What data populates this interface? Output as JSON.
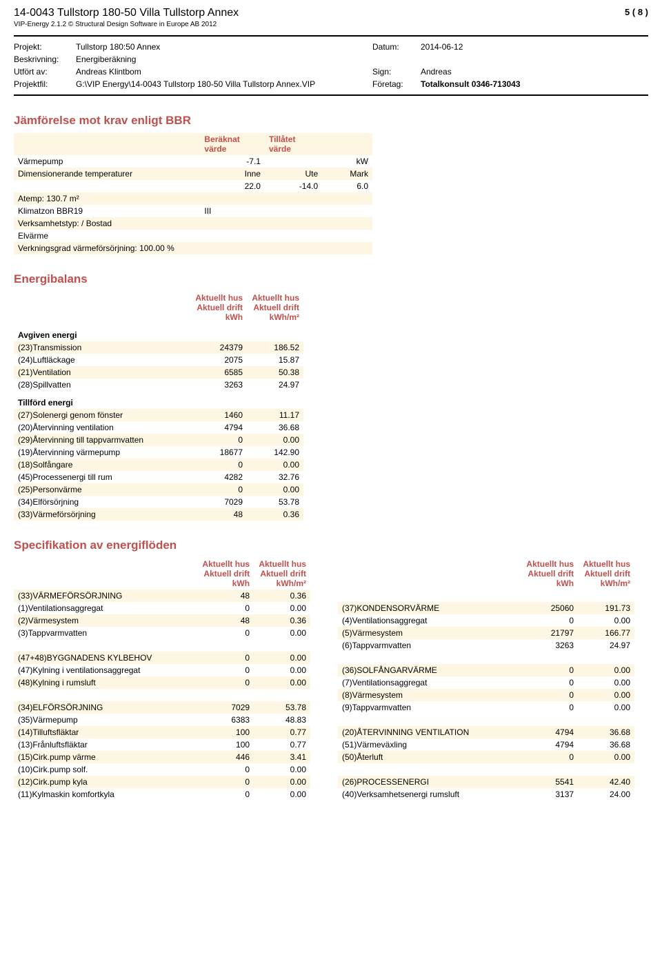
{
  "header": {
    "title": "14-0043 Tullstorp 180-50 Villa Tullstorp Annex",
    "page_num": "5 ( 8 )",
    "subline": "VIP-Energy 2.1.2  © Structural Design Software in Europe AB 2012"
  },
  "meta": {
    "projekt_label": "Projekt:",
    "projekt": "Tullstorp 180:50 Annex",
    "datum_label": "Datum:",
    "datum": "2014-06-12",
    "beskrivning_label": "Beskrivning:",
    "beskrivning": "Energiberäkning",
    "utfort_label": "Utfört av:",
    "utfort": "Andreas Klintbom",
    "sign_label": "Sign:",
    "sign": "Andreas",
    "projektfil_label": "Projektfil:",
    "projektfil": "G:\\VIP Energy\\14-0043 Tullstorp 180-50 Villa Tullstorp Annex.VIP",
    "foretag_label": "Företag:",
    "foretag": "Totalkonsult 0346-713043"
  },
  "colors": {
    "accent": "#c0504d",
    "stripe": "#fdf6e3"
  },
  "bbr": {
    "title": "Jämförelse mot krav enligt BBR",
    "hdr_ber": "Beräknat värde",
    "hdr_till": "Tillåtet värde",
    "rows": [
      {
        "label": "Värmepump",
        "c2": "-7.1",
        "c3": "",
        "c4": "kW"
      },
      {
        "label": "Dimensionerande temperaturer",
        "c2": "Inne",
        "c3": "Ute",
        "c4": "Mark"
      },
      {
        "label": "",
        "c2": "22.0",
        "c3": "-14.0",
        "c4": "6.0"
      },
      {
        "label": "Atemp: 130.7 m²",
        "c2": "",
        "c3": "",
        "c4": ""
      },
      {
        "label": "Klimatzon BBR19",
        "c2": "III",
        "c3": "",
        "c4": "",
        "c2left": true
      },
      {
        "label": "Verksamhetstyp: / Bostad",
        "c2": "",
        "c3": "",
        "c4": ""
      },
      {
        "label": "Elvärme",
        "c2": "",
        "c3": "",
        "c4": ""
      },
      {
        "label": "Verkningsgrad värmeförsörjning: 100.00 %",
        "c2": "",
        "c3": "",
        "c4": ""
      }
    ]
  },
  "energibalans": {
    "title": "Energibalans",
    "col_hdr_1a": "Aktuellt hus",
    "col_hdr_1b": "Aktuell drift",
    "col_hdr_1c": "kWh",
    "col_hdr_2a": "Aktuellt hus",
    "col_hdr_2b": "Aktuell drift",
    "col_hdr_2c": "kWh/m²",
    "avgiven_label": "Avgiven energi",
    "avgiven": [
      {
        "label": "(23)Transmission",
        "v1": "24379",
        "v2": "186.52"
      },
      {
        "label": "(24)Luftläckage",
        "v1": "2075",
        "v2": "15.87"
      },
      {
        "label": "(21)Ventilation",
        "v1": "6585",
        "v2": "50.38"
      },
      {
        "label": "(28)Spillvatten",
        "v1": "3263",
        "v2": "24.97"
      }
    ],
    "tillford_label": "Tillförd energi",
    "tillford": [
      {
        "label": "(27)Solenergi genom fönster",
        "v1": "1460",
        "v2": "11.17"
      },
      {
        "label": "(20)Återvinning ventilation",
        "v1": "4794",
        "v2": "36.68"
      },
      {
        "label": "(29)Återvinning till tappvarmvatten",
        "v1": "0",
        "v2": "0.00"
      },
      {
        "label": "(19)Återvinning värmepump",
        "v1": "18677",
        "v2": "142.90"
      },
      {
        "label": "(18)Solfångare",
        "v1": "0",
        "v2": "0.00"
      },
      {
        "label": "(45)Processenergi till rum",
        "v1": "4282",
        "v2": "32.76"
      },
      {
        "label": "(25)Personvärme",
        "v1": "0",
        "v2": "0.00"
      },
      {
        "label": "(34)Elförsörjning",
        "v1": "7029",
        "v2": "53.78"
      },
      {
        "label": "(33)Värmeförsörjning",
        "v1": "48",
        "v2": "0.36"
      }
    ]
  },
  "spec": {
    "title": "Specifikation av energiflöden",
    "col_hdr_1a": "Aktuellt hus",
    "col_hdr_1b": "Aktuell drift",
    "col_hdr_1c": "kWh",
    "col_hdr_2a": "Aktuellt hus",
    "col_hdr_2b": "Aktuell drift",
    "col_hdr_2c": "kWh/m²",
    "left": [
      {
        "label": "(33)VÄRMEFÖRSÖRJNING",
        "v1": "48",
        "v2": "0.36"
      },
      {
        "label": "(1)Ventilationsaggregat",
        "v1": "0",
        "v2": "0.00"
      },
      {
        "label": "(2)Värmesystem",
        "v1": "48",
        "v2": "0.36"
      },
      {
        "label": "(3)Tappvarmvatten",
        "v1": "0",
        "v2": "0.00"
      },
      {
        "spacer": true
      },
      {
        "label": "(47+48)BYGGNADENS KYLBEHOV",
        "v1": "0",
        "v2": "0.00"
      },
      {
        "label": "(47)Kylning i ventilationsaggregat",
        "v1": "0",
        "v2": "0.00"
      },
      {
        "label": "(48)Kylning i rumsluft",
        "v1": "0",
        "v2": "0.00"
      },
      {
        "spacer": true
      },
      {
        "label": "(34)ELFÖRSÖRJNING",
        "v1": "7029",
        "v2": "53.78"
      },
      {
        "label": "(35)Värmepump",
        "v1": "6383",
        "v2": "48.83"
      },
      {
        "label": "(14)Tilluftsfläktar",
        "v1": "100",
        "v2": "0.77"
      },
      {
        "label": "(13)Frånluftsfläktar",
        "v1": "100",
        "v2": "0.77"
      },
      {
        "label": "(15)Cirk.pump värme",
        "v1": "446",
        "v2": "3.41"
      },
      {
        "label": "(10)Cirk.pump solf.",
        "v1": "0",
        "v2": "0.00"
      },
      {
        "label": "(12)Cirk.pump kyla",
        "v1": "0",
        "v2": "0.00"
      },
      {
        "label": "(11)Kylmaskin komfortkyla",
        "v1": "0",
        "v2": "0.00"
      }
    ],
    "right": [
      {
        "spacer": true
      },
      {
        "label": "(37)KONDENSORVÄRME",
        "v1": "25060",
        "v2": "191.73"
      },
      {
        "label": "(4)Ventilationsaggregat",
        "v1": "0",
        "v2": "0.00"
      },
      {
        "label": "(5)Värmesystem",
        "v1": "21797",
        "v2": "166.77"
      },
      {
        "label": "(6)Tappvarmvatten",
        "v1": "3263",
        "v2": "24.97"
      },
      {
        "spacer": true
      },
      {
        "label": "(36)SOLFÅNGARVÄRME",
        "v1": "0",
        "v2": "0.00"
      },
      {
        "label": "(7)Ventilationsaggregat",
        "v1": "0",
        "v2": "0.00"
      },
      {
        "label": "(8)Värmesystem",
        "v1": "0",
        "v2": "0.00"
      },
      {
        "label": "(9)Tappvarmvatten",
        "v1": "0",
        "v2": "0.00"
      },
      {
        "spacer": true
      },
      {
        "label": "(20)ÅTERVINNING VENTILATION",
        "v1": "4794",
        "v2": "36.68"
      },
      {
        "label": "(51)Värmeväxling",
        "v1": "4794",
        "v2": "36.68"
      },
      {
        "label": "(50)Återluft",
        "v1": "0",
        "v2": "0.00"
      },
      {
        "spacer": true
      },
      {
        "label": "(26)PROCESSENERGI",
        "v1": "5541",
        "v2": "42.40"
      },
      {
        "label": "(40)Verksamhetsenergi rumsluft",
        "v1": "3137",
        "v2": "24.00"
      }
    ]
  }
}
